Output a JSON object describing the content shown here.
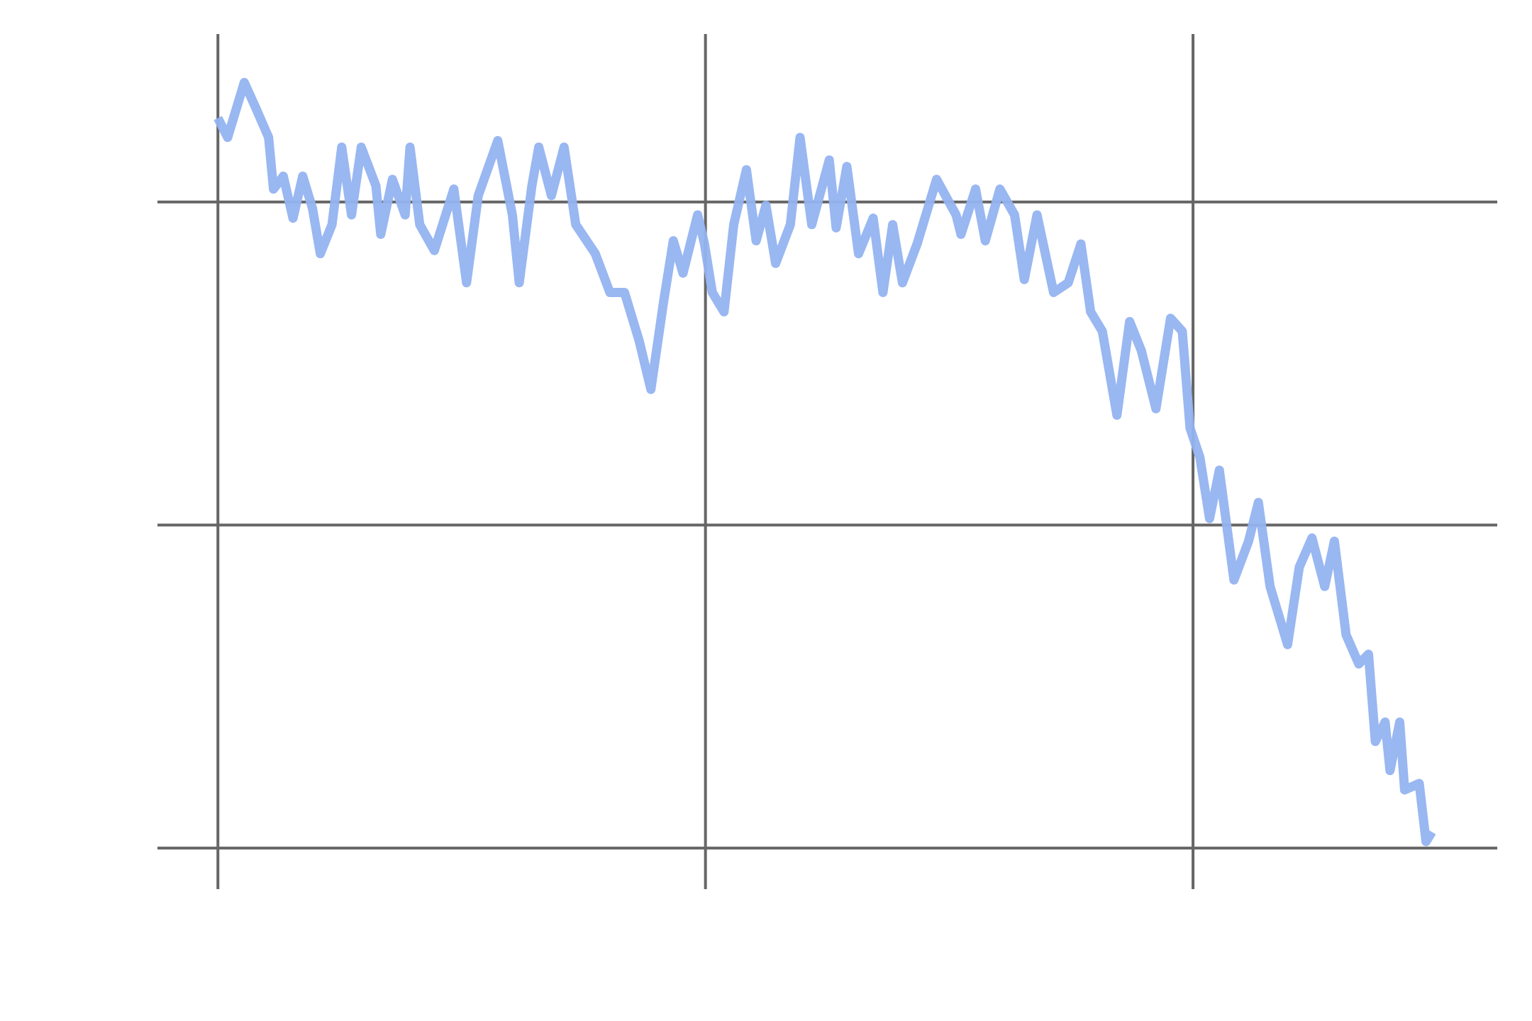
{
  "chart_data": {
    "type": "line",
    "x": [
      0,
      10,
      27,
      39,
      52,
      57,
      67,
      77,
      87,
      97,
      105,
      117,
      127,
      137,
      147,
      162,
      167,
      179,
      192,
      197,
      207,
      222,
      242,
      255,
      267,
      287,
      302,
      309,
      322,
      329,
      342,
      355,
      367,
      387,
      402,
      417,
      432,
      444,
      457,
      467,
      477,
      492,
      499,
      507,
      519,
      529,
      542,
      552,
      562,
      572,
      587,
      597,
      609,
      627,
      634,
      645,
      657,
      672,
      682,
      692,
      702,
      717,
      737,
      757,
      762,
      777,
      787,
      802,
      817,
      827,
      840,
      857,
      872,
      885,
      895,
      907,
      922,
      935,
      947,
      962,
      977,
      989,
      997,
      1007,
      1017,
      1027,
      1042,
      1057,
      1067,
      1079,
      1097,
      1109,
      1122,
      1135,
      1145,
      1157,
      1170,
      1180,
      1187,
      1197,
      1202,
      1212,
      1217,
      1232,
      1239,
      1245
    ],
    "series": [
      {
        "color": "#94b3f0",
        "values": [
          2.26,
          2.2,
          2.37,
          2.29,
          2.2,
          2.04,
          2.08,
          1.95,
          2.08,
          1.98,
          1.84,
          1.93,
          2.17,
          1.96,
          2.17,
          2.05,
          1.9,
          2.07,
          1.96,
          2.17,
          1.93,
          1.85,
          2.04,
          1.75,
          2.02,
          2.19,
          1.96,
          1.75,
          2.05,
          2.17,
          2.02,
          2.17,
          1.93,
          1.84,
          1.72,
          1.72,
          1.57,
          1.42,
          1.69,
          1.88,
          1.78,
          1.96,
          1.87,
          1.72,
          1.66,
          1.93,
          2.1,
          1.88,
          1.99,
          1.81,
          1.93,
          2.2,
          1.93,
          2.13,
          1.92,
          2.11,
          1.84,
          1.95,
          1.72,
          1.93,
          1.75,
          1.87,
          2.07,
          1.96,
          1.9,
          2.04,
          1.88,
          2.04,
          1.96,
          1.76,
          1.96,
          1.72,
          1.75,
          1.87,
          1.66,
          1.6,
          1.34,
          1.63,
          1.54,
          1.36,
          1.64,
          1.6,
          1.3,
          1.21,
          1.02,
          1.17,
          0.83,
          0.95,
          1.07,
          0.81,
          0.63,
          0.87,
          0.96,
          0.81,
          0.95,
          0.66,
          0.57,
          0.6,
          0.33,
          0.39,
          0.24,
          0.39,
          0.18,
          0.2,
          0.02,
          0.05
        ]
      }
    ],
    "xlim": [
      -62,
      1312
    ],
    "xticks": [
      0,
      500,
      1000
    ],
    "ylim": [
      -0.127,
      2.52
    ],
    "yticks": [
      0,
      1,
      2
    ],
    "grid": true
  }
}
